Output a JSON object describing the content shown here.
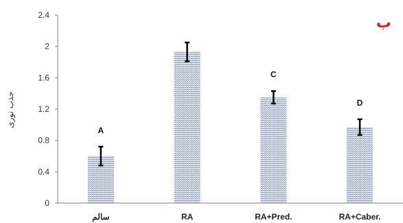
{
  "chart_data": {
    "type": "bar",
    "categories": [
      "سالم",
      "RA",
      "RA+Pred.",
      "RA+Caber."
    ],
    "values": [
      0.6,
      1.93,
      1.35,
      0.97
    ],
    "errors": [
      0.12,
      0.12,
      0.08,
      0.1
    ],
    "bar_labels": [
      "A",
      "",
      "C",
      "D"
    ],
    "ylabel": "جذب نوری",
    "ylim": [
      0,
      2.4
    ],
    "yticks": [
      "0",
      "0.4",
      "0.8",
      "1.2",
      "1.6",
      "2",
      "2.4"
    ],
    "grid": false,
    "panel_label": "ب",
    "panel_label_color": "#e02020",
    "bar_color": "#7f92b8",
    "bar_pattern": "zigzag hatch"
  }
}
